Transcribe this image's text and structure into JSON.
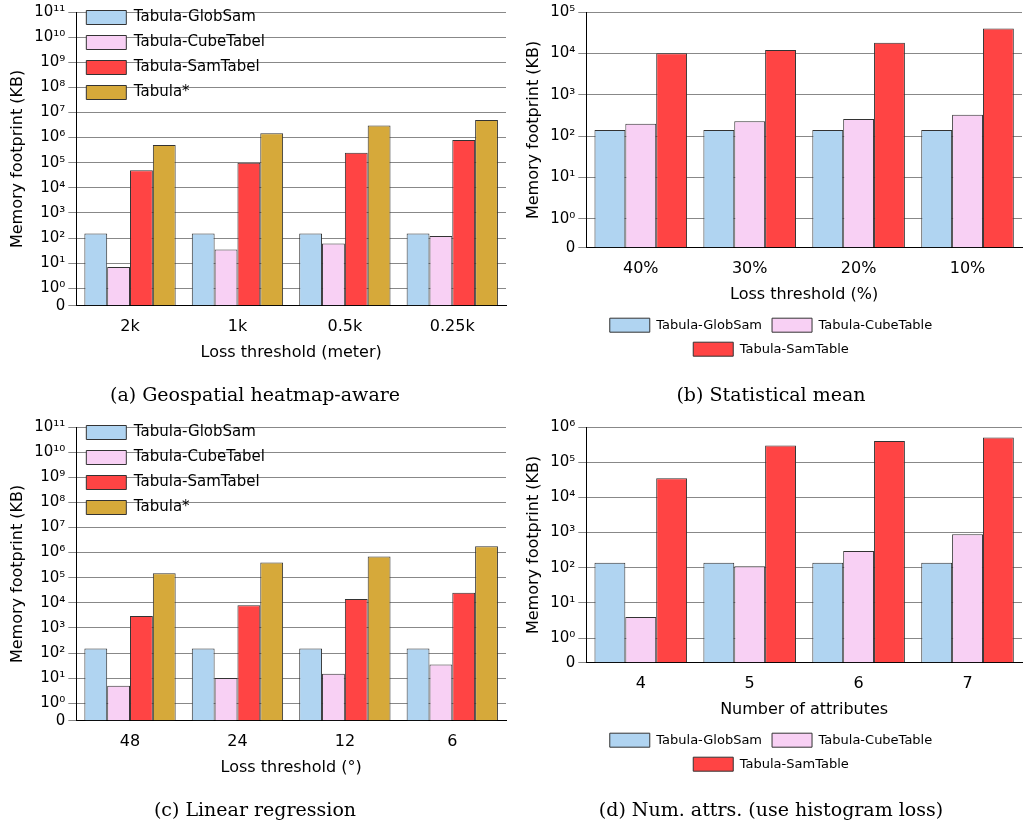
{
  "chart_data": [
    {
      "type": "bar",
      "title": "(a) Geospatial heatmap-aware",
      "xlabel": "Loss threshold (meter)",
      "ylabel": "Memory footprint (KB)",
      "categories": [
        "2k",
        "1k",
        "0.5k",
        "0.25k"
      ],
      "log": true,
      "grid": "y",
      "legend": "top left",
      "ylim": [
        0,
        100000000000
      ],
      "yticks": [
        {
          "value": 0,
          "label": "0"
        },
        {
          "value": 1,
          "label": "10⁰"
        },
        {
          "value": 10,
          "label": "10¹"
        },
        {
          "value": 100,
          "label": "10²"
        },
        {
          "value": 1000,
          "label": "10³"
        },
        {
          "value": 10000,
          "label": "10⁴"
        },
        {
          "value": 100000,
          "label": "10⁵"
        },
        {
          "value": 1000000,
          "label": "10⁶"
        },
        {
          "value": 10000000,
          "label": "10⁷"
        },
        {
          "value": 100000000,
          "label": "10⁸"
        },
        {
          "value": 1000000000,
          "label": "10⁹"
        },
        {
          "value": 10000000000,
          "label": "10¹⁰"
        },
        {
          "value": 100000000000,
          "label": "10¹¹"
        }
      ],
      "series": [
        {
          "name": "Tabula-GlobSam",
          "color": "#b0d4f1",
          "values": [
            150,
            150,
            150,
            150
          ]
        },
        {
          "name": "Tabula-CubeTabel",
          "color": "#f8d0f4",
          "values": [
            7,
            35,
            60,
            120
          ]
        },
        {
          "name": "Tabula-SamTabel",
          "color": "#ff4444",
          "values": [
            50000,
            100000,
            250000,
            800000
          ]
        },
        {
          "name": "Tabula*",
          "color": "#d6a93a",
          "values": [
            500000,
            1500000,
            3000000,
            5000000
          ]
        }
      ]
    },
    {
      "type": "bar",
      "title": "(b) Statistical mean",
      "xlabel": "Loss threshold (%)",
      "ylabel": "Memory footprint (KB)",
      "categories": [
        "40%",
        "30%",
        "20%",
        "10%"
      ],
      "log": true,
      "grid": "y",
      "legend": "bottom",
      "ylim": [
        0,
        100000
      ],
      "yticks": [
        {
          "value": 0,
          "label": "0"
        },
        {
          "value": 1,
          "label": "10⁰"
        },
        {
          "value": 10,
          "label": "10¹"
        },
        {
          "value": 100,
          "label": "10²"
        },
        {
          "value": 1000,
          "label": "10³"
        },
        {
          "value": 10000,
          "label": "10⁴"
        },
        {
          "value": 100000,
          "label": "10⁵"
        }
      ],
      "series": [
        {
          "name": "Tabula-GlobSam",
          "color": "#b0d4f1",
          "values": [
            140,
            140,
            140,
            140
          ]
        },
        {
          "name": "Tabula-CubeTable",
          "color": "#f8d0f4",
          "values": [
            200,
            230,
            260,
            330
          ]
        },
        {
          "name": "Tabula-SamTable",
          "color": "#ff4444",
          "values": [
            10000,
            12000,
            18000,
            40000
          ]
        }
      ]
    },
    {
      "type": "bar",
      "title": "(c) Linear regression",
      "xlabel": "Loss threshold (°)",
      "ylabel": "Memory footprint (KB)",
      "categories": [
        "48",
        "24",
        "12",
        "6"
      ],
      "log": true,
      "grid": "y",
      "legend": "top left",
      "ylim": [
        0,
        100000000000
      ],
      "yticks": [
        {
          "value": 0,
          "label": "0"
        },
        {
          "value": 1,
          "label": "10⁰"
        },
        {
          "value": 10,
          "label": "10¹"
        },
        {
          "value": 100,
          "label": "10²"
        },
        {
          "value": 1000,
          "label": "10³"
        },
        {
          "value": 10000,
          "label": "10⁴"
        },
        {
          "value": 100000,
          "label": "10⁵"
        },
        {
          "value": 1000000,
          "label": "10⁶"
        },
        {
          "value": 10000000,
          "label": "10⁷"
        },
        {
          "value": 100000000,
          "label": "10⁸"
        },
        {
          "value": 1000000000,
          "label": "10⁹"
        },
        {
          "value": 10000000000,
          "label": "10¹⁰"
        },
        {
          "value": 100000000000,
          "label": "10¹¹"
        }
      ],
      "series": [
        {
          "name": "Tabula-GlobSam",
          "color": "#b0d4f1",
          "values": [
            150,
            150,
            150,
            150
          ]
        },
        {
          "name": "Tabula-CubeTabel",
          "color": "#f8d0f4",
          "values": [
            5,
            10,
            15,
            35
          ]
        },
        {
          "name": "Tabula-SamTabel",
          "color": "#ff4444",
          "values": [
            3000,
            8000,
            14000,
            25000
          ]
        },
        {
          "name": "Tabula*",
          "color": "#d6a93a",
          "values": [
            150000,
            400000,
            700000,
            1800000
          ]
        }
      ]
    },
    {
      "type": "bar",
      "title": "(d) Num. attrs. (use histogram loss)",
      "xlabel": "Number of attributes",
      "ylabel": "Memory footprint (KB)",
      "categories": [
        "4",
        "5",
        "6",
        "7"
      ],
      "log": true,
      "grid": "y",
      "legend": "bottom",
      "ylim": [
        0,
        1000000
      ],
      "yticks": [
        {
          "value": 0,
          "label": "0"
        },
        {
          "value": 1,
          "label": "10⁰"
        },
        {
          "value": 10,
          "label": "10¹"
        },
        {
          "value": 100,
          "label": "10²"
        },
        {
          "value": 1000,
          "label": "10³"
        },
        {
          "value": 10000,
          "label": "10⁴"
        },
        {
          "value": 100000,
          "label": "10⁵"
        },
        {
          "value": 1000000,
          "label": "10⁶"
        }
      ],
      "series": [
        {
          "name": "Tabula-GlobSam",
          "color": "#b0d4f1",
          "values": [
            140,
            140,
            140,
            140
          ]
        },
        {
          "name": "Tabula-CubeTable",
          "color": "#f8d0f4",
          "values": [
            4,
            110,
            300,
            900
          ]
        },
        {
          "name": "Tabula-SamTable",
          "color": "#ff4444",
          "values": [
            35000,
            300000,
            400000,
            500000
          ]
        }
      ]
    }
  ]
}
